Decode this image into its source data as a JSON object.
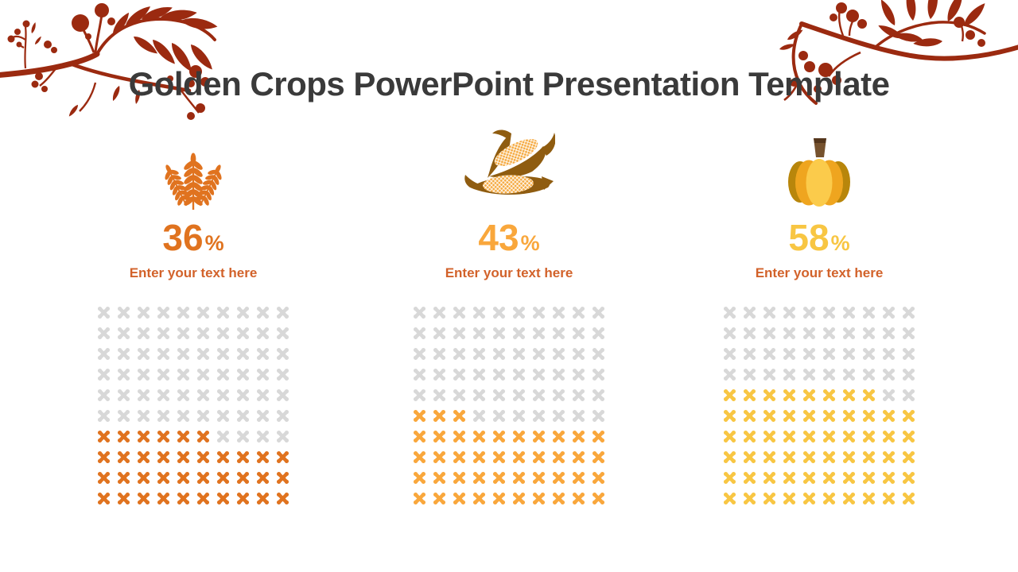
{
  "title": "Golden Crops PowerPoint Presentation Template",
  "colors": {
    "title_text": "#3A3A3A",
    "branch_decoration": "#9B2A10",
    "caption_text": "#D2622A",
    "waffle_empty": "#D8D8D8"
  },
  "columns": [
    {
      "name": "wheat",
      "icon": "wheat-icon",
      "percent": "36",
      "percent_sign": "%",
      "caption": "Enter your text here",
      "accent": "#E0731F"
    },
    {
      "name": "corn",
      "icon": "corn-icon",
      "percent": "43",
      "percent_sign": "%",
      "caption": "Enter your text here",
      "accent": "#F9A73C"
    },
    {
      "name": "pumpkin",
      "icon": "pumpkin-icon",
      "percent": "58",
      "percent_sign": "%",
      "caption": "Enter your text here",
      "accent": "#F8C643"
    }
  ],
  "chart_data": {
    "type": "waffle",
    "categories": [
      "wheat",
      "corn",
      "pumpkin"
    ],
    "values": [
      36,
      43,
      58
    ],
    "unit": "%",
    "grid": [
      10,
      10
    ],
    "fill_origin": "bottom-left",
    "fill_colors": [
      "#E0731F",
      "#F9A73C",
      "#F8C643"
    ],
    "empty_color": "#D8D8D8",
    "cell_icon": "puzzle-piece"
  }
}
